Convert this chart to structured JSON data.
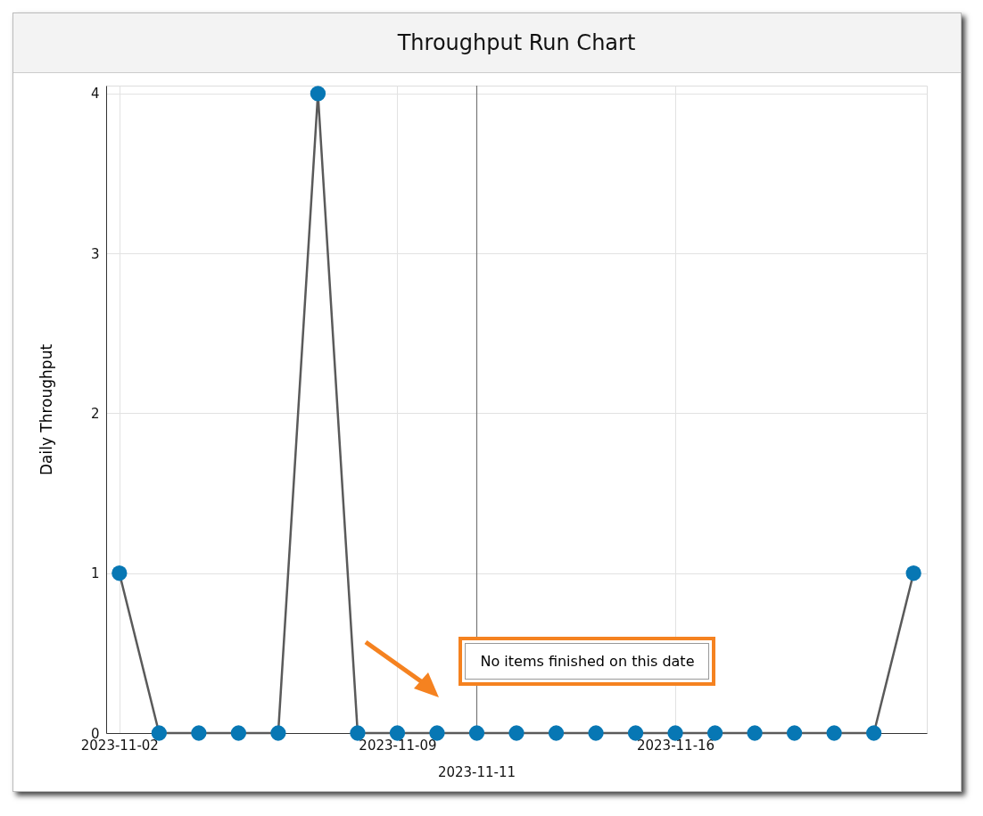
{
  "chart_data": {
    "type": "line",
    "title": "Throughput Run Chart",
    "ylabel": "Daily Throughput",
    "x": [
      "2023-11-02",
      "2023-11-03",
      "2023-11-04",
      "2023-11-05",
      "2023-11-06",
      "2023-11-07",
      "2023-11-08",
      "2023-11-09",
      "2023-11-10",
      "2023-11-11",
      "2023-11-12",
      "2023-11-13",
      "2023-11-14",
      "2023-11-15",
      "2023-11-16",
      "2023-11-17",
      "2023-11-18",
      "2023-11-19",
      "2023-11-20",
      "2023-11-21",
      "2023-11-22"
    ],
    "values": [
      1,
      0,
      0,
      0,
      0,
      4,
      0,
      0,
      0,
      0,
      0,
      0,
      0,
      0,
      0,
      0,
      0,
      0,
      0,
      0,
      1
    ],
    "color": "#0777b4",
    "xlim": [
      "2023-11-01T16:00",
      "2023-11-22T08:00"
    ],
    "xticks": [
      "2023-11-02",
      "2023-11-09",
      "2023-11-16"
    ],
    "ylim": [
      0,
      4.05
    ],
    "yticks": [
      0,
      1,
      2,
      3,
      4
    ],
    "grid": true,
    "marker": "circle",
    "line_style": "solid",
    "ref_lines": [
      {
        "axis": "x",
        "value": "2023-11-11",
        "label": "2023-11-11"
      }
    ],
    "annotations": [
      "No items finished on this date"
    ]
  }
}
